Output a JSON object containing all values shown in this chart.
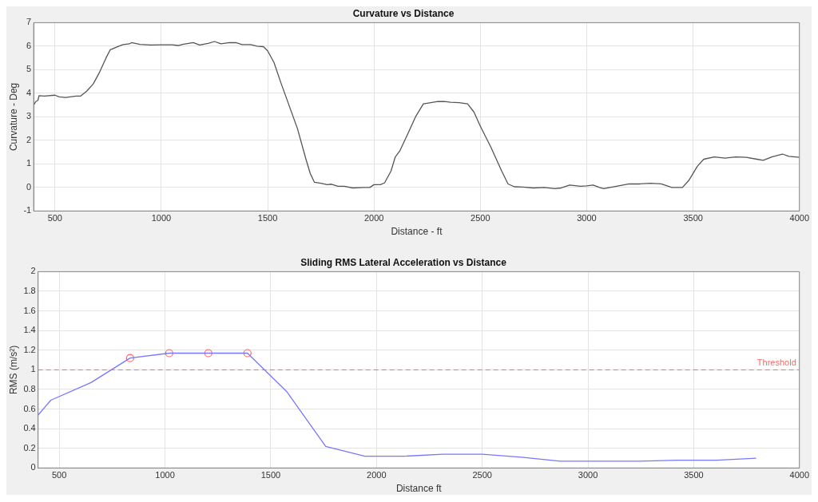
{
  "chart_data": [
    {
      "type": "line",
      "title": "Curvature vs Distance",
      "xlabel": "Distance - ft",
      "ylabel": "Curvature - Deg",
      "xlim": [
        400,
        4000
      ],
      "xticks": [
        500,
        1000,
        1500,
        2000,
        2500,
        3000,
        3500,
        4000
      ],
      "ylim": [
        -1,
        7
      ],
      "yticks": [
        -1,
        0,
        1,
        2,
        3,
        4,
        5,
        6,
        7
      ],
      "grid": true,
      "series": [
        {
          "type": "line",
          "color": "#555555",
          "marker": "none",
          "line_style": "solid",
          "x": [
            400,
            410,
            420,
            425,
            450,
            500,
            520,
            550,
            600,
            620,
            650,
            680,
            710,
            740,
            760,
            800,
            820,
            850,
            860,
            900,
            950,
            1000,
            1050,
            1080,
            1100,
            1150,
            1180,
            1220,
            1250,
            1280,
            1320,
            1350,
            1380,
            1420,
            1450,
            1480,
            1500,
            1530,
            1560,
            1600,
            1640,
            1680,
            1700,
            1720,
            1750,
            1780,
            1800,
            1830,
            1860,
            1900,
            1950,
            1980,
            2000,
            2030,
            2050,
            2080,
            2100,
            2121,
            2160,
            2195,
            2232,
            2250,
            2300,
            2330,
            2360,
            2400,
            2440,
            2470,
            2500,
            2550,
            2600,
            2630,
            2660,
            2700,
            2750,
            2800,
            2850,
            2880,
            2920,
            2970,
            3000,
            3030,
            3060,
            3080,
            3120,
            3200,
            3250,
            3300,
            3350,
            3400,
            3450,
            3480,
            3520,
            3550,
            3600,
            3650,
            3700,
            3750,
            3800,
            3830,
            3870,
            3920,
            3950,
            4000
          ],
          "values": [
            3.5,
            3.65,
            3.7,
            3.9,
            3.88,
            3.92,
            3.85,
            3.82,
            3.88,
            3.88,
            4.1,
            4.4,
            4.9,
            5.5,
            5.85,
            6.0,
            6.07,
            6.1,
            6.15,
            6.08,
            6.05,
            6.06,
            6.06,
            6.03,
            6.08,
            6.15,
            6.05,
            6.12,
            6.2,
            6.1,
            6.15,
            6.15,
            6.07,
            6.07,
            6.0,
            5.98,
            5.8,
            5.3,
            4.5,
            3.5,
            2.5,
            1.2,
            0.6,
            0.22,
            0.18,
            0.12,
            0.14,
            0.05,
            0.05,
            -0.02,
            0.0,
            0.0,
            0.12,
            0.12,
            0.2,
            0.7,
            1.3,
            1.55,
            2.3,
            3.0,
            3.55,
            3.58,
            3.65,
            3.65,
            3.62,
            3.6,
            3.55,
            3.2,
            2.6,
            1.7,
            0.7,
            0.15,
            0.03,
            0.02,
            -0.02,
            0.0,
            -0.05,
            -0.02,
            0.1,
            0.05,
            0.07,
            0.1,
            0.0,
            -0.05,
            0.02,
            0.15,
            0.15,
            0.18,
            0.15,
            0.0,
            0.0,
            0.3,
            0.9,
            1.2,
            1.3,
            1.25,
            1.3,
            1.28,
            1.2,
            1.15,
            1.3,
            1.42,
            1.32,
            1.28
          ]
        }
      ]
    },
    {
      "type": "line",
      "title": "Sliding RMS Lateral Acceleration vs Distance",
      "xlabel": "Distance ft",
      "ylabel": "RMS (m/s²)",
      "xlim": [
        400,
        4000
      ],
      "xticks": [
        500,
        1000,
        1500,
        2000,
        2500,
        3000,
        3500,
        4000
      ],
      "ylim": [
        0,
        2
      ],
      "yticks": [
        0,
        0.2,
        0.4,
        0.6,
        0.8,
        1,
        1.2,
        1.4,
        1.6,
        1.8,
        2
      ],
      "grid": true,
      "ref_lines": [
        {
          "axis": "y",
          "value": 1,
          "label": "Threshold",
          "color": "#ff6666",
          "line_style": "dashed"
        }
      ],
      "series": [
        {
          "type": "line",
          "color": "#7777ff",
          "marker": "none",
          "line_style": "solid",
          "x": [
            400,
            460,
            650,
            835,
            1020,
            1205,
            1390,
            1575,
            1760,
            1945,
            2130,
            2315,
            2500,
            2685,
            2870,
            3055,
            3240,
            3425,
            3610,
            3795
          ],
          "values": [
            0.54,
            0.69,
            0.87,
            1.12,
            1.17,
            1.17,
            1.17,
            0.78,
            0.22,
            0.12,
            0.12,
            0.14,
            0.14,
            0.11,
            0.07,
            0.07,
            0.07,
            0.08,
            0.08,
            0.1
          ]
        },
        {
          "type": "scatter",
          "color": "#ff6666",
          "marker": "circle",
          "x": [
            835,
            1020,
            1205,
            1390
          ],
          "values": [
            1.12,
            1.17,
            1.17,
            1.17
          ]
        }
      ]
    }
  ]
}
